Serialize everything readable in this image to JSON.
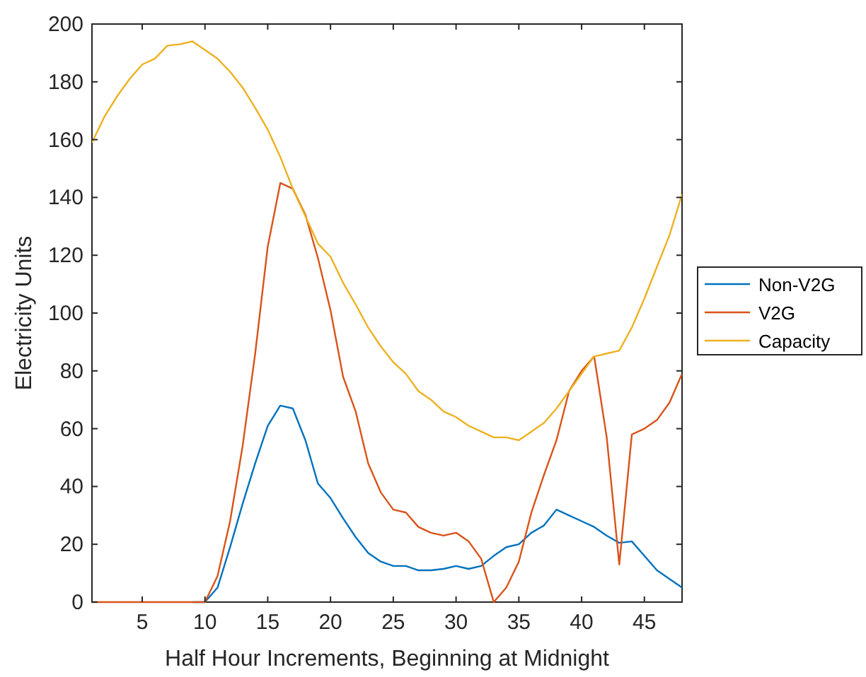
{
  "chart_data": {
    "type": "line",
    "xlabel": "Half Hour Increments, Beginning at Midnight",
    "ylabel": "Electricity Units",
    "x": [
      1,
      2,
      3,
      4,
      5,
      6,
      7,
      8,
      9,
      10,
      11,
      12,
      13,
      14,
      15,
      16,
      17,
      18,
      19,
      20,
      21,
      22,
      23,
      24,
      25,
      26,
      27,
      28,
      29,
      30,
      31,
      32,
      33,
      34,
      35,
      36,
      37,
      38,
      39,
      40,
      41,
      42,
      43,
      44,
      45,
      46,
      47,
      48
    ],
    "xlim": [
      1,
      48
    ],
    "xticks": [
      5,
      10,
      15,
      20,
      25,
      30,
      35,
      40,
      45
    ],
    "ylim": [
      0,
      200
    ],
    "yticks": [
      0,
      20,
      40,
      60,
      80,
      100,
      120,
      140,
      160,
      180,
      200
    ],
    "grid": false,
    "legend": "right",
    "marker": "none",
    "line_style": "solid",
    "series": [
      {
        "name": "Non-V2G",
        "color": "#0072bd",
        "values": [
          null,
          null,
          null,
          null,
          null,
          null,
          null,
          null,
          0,
          0,
          5,
          19,
          34,
          48,
          61,
          68,
          67,
          56,
          41,
          36,
          29,
          22.5,
          17,
          14,
          12.5,
          12.5,
          11,
          11,
          11.5,
          12.5,
          11.5,
          12.5,
          16,
          19,
          20,
          24,
          26.5,
          32,
          30,
          28,
          26,
          23,
          20.5,
          21,
          16,
          11,
          8,
          5
        ]
      },
      {
        "name": "V2G",
        "color": "#d95319",
        "values": [
          0,
          0,
          0,
          0,
          0,
          0,
          0,
          0,
          0,
          0,
          9,
          28,
          54,
          86,
          123,
          145,
          143,
          134,
          119,
          101,
          78,
          66,
          48,
          38,
          32,
          31,
          26,
          24,
          23,
          24,
          21,
          15,
          0,
          5,
          14,
          31,
          44,
          56,
          73,
          80,
          85,
          57,
          13,
          58,
          60,
          63,
          69,
          79
        ]
      },
      {
        "name": "Capacity",
        "color": "#edb120",
        "values": [
          159,
          168,
          175,
          181,
          186,
          188,
          192.5,
          193,
          194,
          191,
          188,
          183.5,
          178,
          171,
          163.5,
          154,
          143,
          133.5,
          124,
          119.5,
          110.5,
          103,
          95,
          88.5,
          83,
          79,
          73,
          70,
          66,
          64,
          61,
          59,
          57,
          57,
          56,
          59,
          62,
          67,
          73,
          79,
          85,
          86,
          87,
          95,
          105,
          116,
          127,
          141
        ]
      }
    ]
  }
}
